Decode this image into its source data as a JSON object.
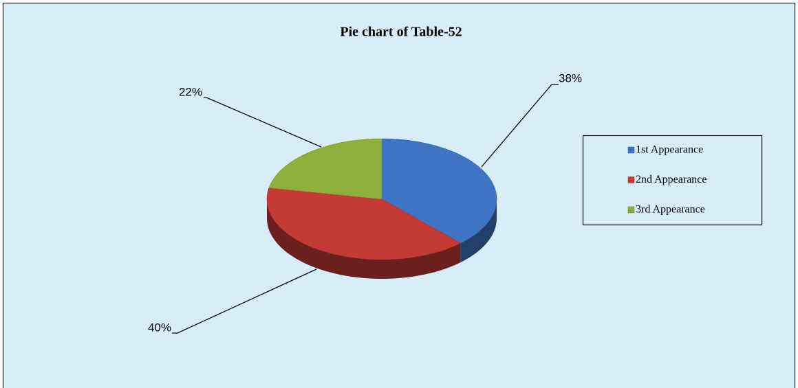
{
  "chart_data": {
    "type": "pie",
    "title": "Pie chart of Table-52",
    "categories": [
      "1st Appearance",
      "2nd Appearance",
      "3rd Appearance"
    ],
    "values": [
      38,
      40,
      22
    ],
    "value_labels": [
      "38%",
      "40%",
      "22%"
    ],
    "colors": [
      "#3f73c4",
      "#c43a35",
      "#8db03c"
    ],
    "legend": "right"
  }
}
